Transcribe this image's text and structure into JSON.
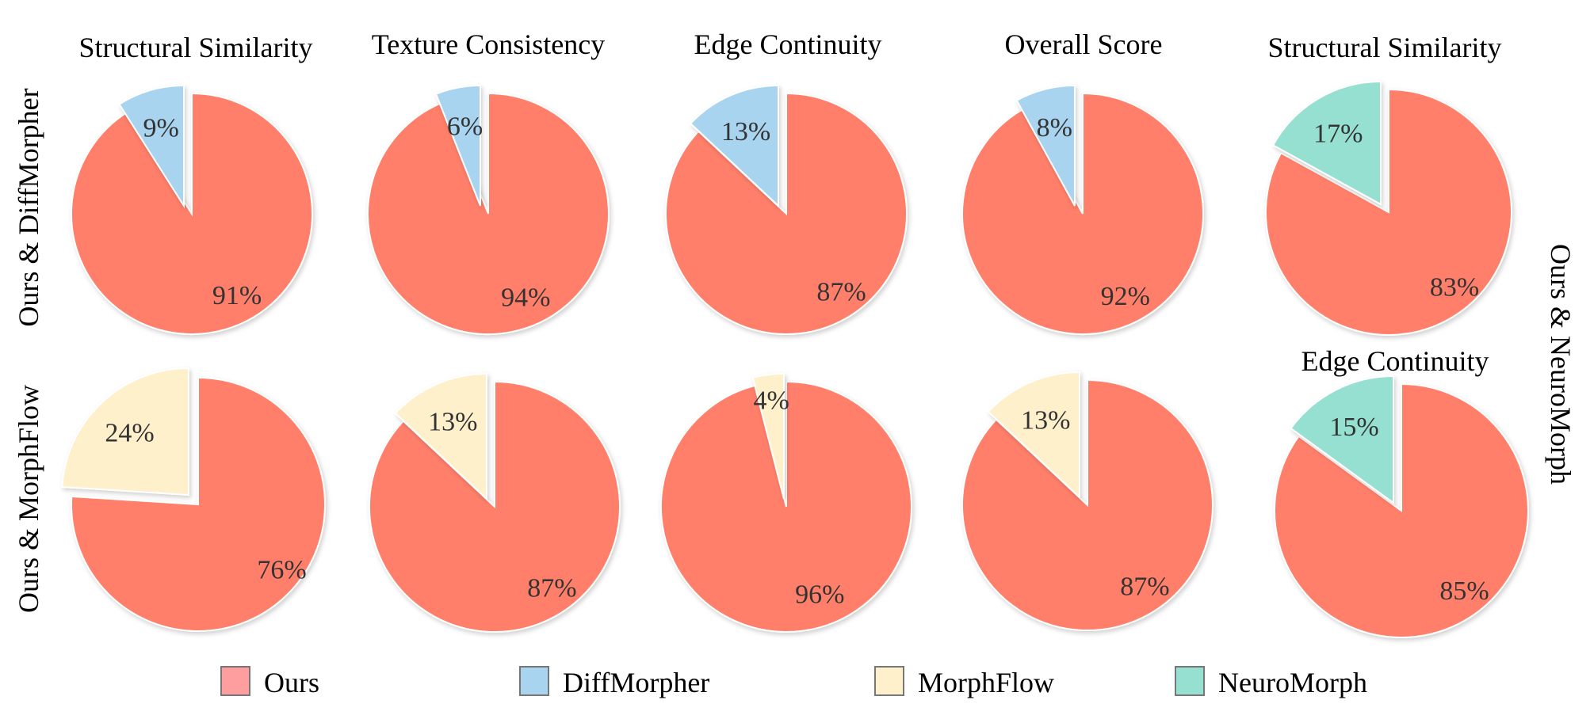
{
  "colors": {
    "Ours": "#FF7F6A",
    "DiffMorpher": "#A8D4F0",
    "MorphFlow": "#FFF0CC",
    "NeuroMorph": "#96E0D2",
    "label": "#333333"
  },
  "legend": [
    "Ours",
    "DiffMorpher",
    "MorphFlow",
    "NeuroMorph"
  ],
  "row_labels": {
    "row1": "Ours & DiffMorpher",
    "row2": "Ours & MorphFlow",
    "right": "Ours & NeuroMorph"
  },
  "chart_data": [
    {
      "type": "pie",
      "title": "Structural Similarity",
      "comparison": "Ours & DiffMorpher",
      "slices": [
        {
          "name": "Ours",
          "value": 91,
          "label": "91%"
        },
        {
          "name": "DiffMorpher",
          "value": 9,
          "label": "9%"
        }
      ]
    },
    {
      "type": "pie",
      "title": "Texture Consistency",
      "comparison": "Ours & DiffMorpher",
      "slices": [
        {
          "name": "Ours",
          "value": 94,
          "label": "94%"
        },
        {
          "name": "DiffMorpher",
          "value": 6,
          "label": "6%"
        }
      ]
    },
    {
      "type": "pie",
      "title": "Edge Continuity",
      "comparison": "Ours & DiffMorpher",
      "slices": [
        {
          "name": "Ours",
          "value": 87,
          "label": "87%"
        },
        {
          "name": "DiffMorpher",
          "value": 13,
          "label": "13%"
        }
      ]
    },
    {
      "type": "pie",
      "title": "Overall Score",
      "comparison": "Ours & DiffMorpher",
      "slices": [
        {
          "name": "Ours",
          "value": 92,
          "label": "92%"
        },
        {
          "name": "DiffMorpher",
          "value": 8,
          "label": "8%"
        }
      ]
    },
    {
      "type": "pie",
      "title": "Structural Similarity",
      "comparison": "Ours & NeuroMorph",
      "slices": [
        {
          "name": "Ours",
          "value": 83,
          "label": "83%"
        },
        {
          "name": "NeuroMorph",
          "value": 17,
          "label": "17%"
        }
      ]
    },
    {
      "type": "pie",
      "title": "",
      "comparison": "Ours & MorphFlow",
      "slices": [
        {
          "name": "Ours",
          "value": 76,
          "label": "76%"
        },
        {
          "name": "MorphFlow",
          "value": 24,
          "label": "24%"
        }
      ]
    },
    {
      "type": "pie",
      "title": "",
      "comparison": "Ours & MorphFlow",
      "slices": [
        {
          "name": "Ours",
          "value": 87,
          "label": "87%"
        },
        {
          "name": "MorphFlow",
          "value": 13,
          "label": "13%"
        }
      ]
    },
    {
      "type": "pie",
      "title": "",
      "comparison": "Ours & MorphFlow",
      "slices": [
        {
          "name": "Ours",
          "value": 96,
          "label": "96%"
        },
        {
          "name": "MorphFlow",
          "value": 4,
          "label": "4%"
        }
      ]
    },
    {
      "type": "pie",
      "title": "",
      "comparison": "Ours & MorphFlow",
      "slices": [
        {
          "name": "Ours",
          "value": 87,
          "label": "87%"
        },
        {
          "name": "MorphFlow",
          "value": 13,
          "label": "13%"
        }
      ]
    },
    {
      "type": "pie",
      "title": "Edge Continuity",
      "comparison": "Ours & NeuroMorph",
      "slices": [
        {
          "name": "Ours",
          "value": 85,
          "label": "85%"
        },
        {
          "name": "NeuroMorph",
          "value": 15,
          "label": "15%"
        }
      ]
    }
  ]
}
